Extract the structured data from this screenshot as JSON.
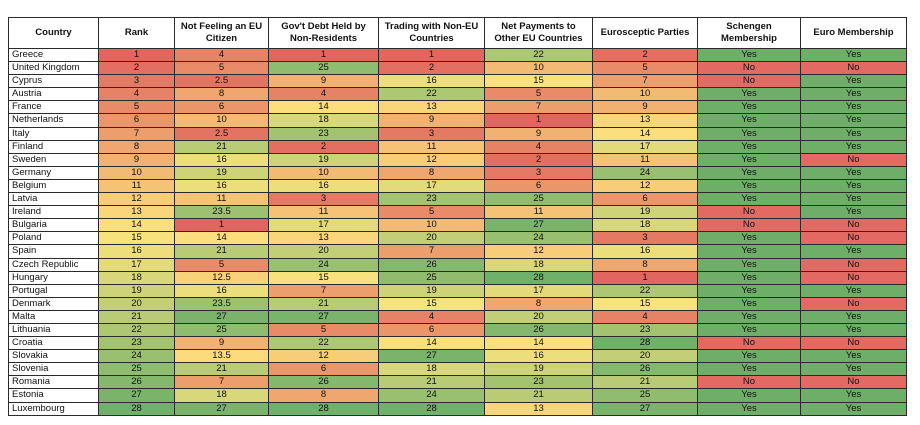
{
  "headers": [
    "Country",
    "Rank",
    "Not Feeling an EU Citizen",
    "Gov't Debt Held by Non-Residents",
    "Trading with Non-EU Countries",
    "Net Payments to Other EU Countries",
    "Eurosceptic Parties",
    "Schengen Membership",
    "Euro Membership"
  ],
  "rows": [
    [
      "Greece",
      "1",
      "4",
      "1",
      "1",
      "22",
      "2",
      "Yes",
      "Yes"
    ],
    [
      "United Kingdom",
      "2",
      "5",
      "25",
      "2",
      "10",
      "5",
      "No",
      "No"
    ],
    [
      "Cyprus",
      "3",
      "2.5",
      "9",
      "16",
      "15",
      "7",
      "No",
      "Yes"
    ],
    [
      "Austria",
      "4",
      "8",
      "4",
      "22",
      "5",
      "10",
      "Yes",
      "Yes"
    ],
    [
      "France",
      "5",
      "6",
      "14",
      "13",
      "7",
      "9",
      "Yes",
      "Yes"
    ],
    [
      "Netherlands",
      "6",
      "10",
      "18",
      "9",
      "1",
      "13",
      "Yes",
      "Yes"
    ],
    [
      "Italy",
      "7",
      "2.5",
      "23",
      "3",
      "9",
      "14",
      "Yes",
      "Yes"
    ],
    [
      "Finland",
      "8",
      "21",
      "2",
      "11",
      "4",
      "17",
      "Yes",
      "Yes"
    ],
    [
      "Sweden",
      "9",
      "16",
      "19",
      "12",
      "2",
      "11",
      "Yes",
      "No"
    ],
    [
      "Germany",
      "10",
      "19",
      "10",
      "8",
      "3",
      "24",
      "Yes",
      "Yes"
    ],
    [
      "Belgium",
      "11",
      "16",
      "16",
      "17",
      "6",
      "12",
      "Yes",
      "Yes"
    ],
    [
      "Latvia",
      "12",
      "11",
      "3",
      "23",
      "25",
      "6",
      "Yes",
      "Yes"
    ],
    [
      "Ireland",
      "13",
      "23.5",
      "11",
      "5",
      "11",
      "19",
      "No",
      "Yes"
    ],
    [
      "Bulgaria",
      "14",
      "1",
      "17",
      "10",
      "27",
      "18",
      "No",
      "No"
    ],
    [
      "Poland",
      "15",
      "14",
      "13",
      "20",
      "24",
      "3",
      "Yes",
      "No"
    ],
    [
      "Spain",
      "16",
      "21",
      "20",
      "7",
      "12",
      "16",
      "Yes",
      "Yes"
    ],
    [
      "Czech Republic",
      "17",
      "5",
      "24",
      "26",
      "18",
      "8",
      "Yes",
      "No"
    ],
    [
      "Hungary",
      "18",
      "12.5",
      "15",
      "25",
      "28",
      "1",
      "Yes",
      "No"
    ],
    [
      "Portugal",
      "19",
      "16",
      "7",
      "19",
      "17",
      "22",
      "Yes",
      "Yes"
    ],
    [
      "Denmark",
      "20",
      "23.5",
      "21",
      "15",
      "8",
      "15",
      "Yes",
      "No"
    ],
    [
      "Malta",
      "21",
      "27",
      "27",
      "4",
      "20",
      "4",
      "Yes",
      "Yes"
    ],
    [
      "Lithuania",
      "22",
      "25",
      "5",
      "6",
      "26",
      "23",
      "Yes",
      "Yes"
    ],
    [
      "Croatia",
      "23",
      "9",
      "22",
      "14",
      "14",
      "28",
      "No",
      "No"
    ],
    [
      "Slovakia",
      "24",
      "13.5",
      "12",
      "27",
      "16",
      "20",
      "Yes",
      "Yes"
    ],
    [
      "Slovenia",
      "25",
      "21",
      "6",
      "18",
      "19",
      "26",
      "Yes",
      "Yes"
    ],
    [
      "Romania",
      "26",
      "7",
      "26",
      "21",
      "23",
      "21",
      "No",
      "No"
    ],
    [
      "Estonia",
      "27",
      "18",
      "8",
      "24",
      "21",
      "25",
      "Yes",
      "Yes"
    ],
    [
      "Luxembourg",
      "28",
      "27",
      "28",
      "28",
      "13",
      "27",
      "Yes",
      "Yes"
    ]
  ],
  "colors": {
    "scale_low": "#e0665f",
    "scale_mid": "#fde47e",
    "scale_high": "#6fb06a",
    "yes": "#6eae68",
    "no": "#e36a63"
  }
}
